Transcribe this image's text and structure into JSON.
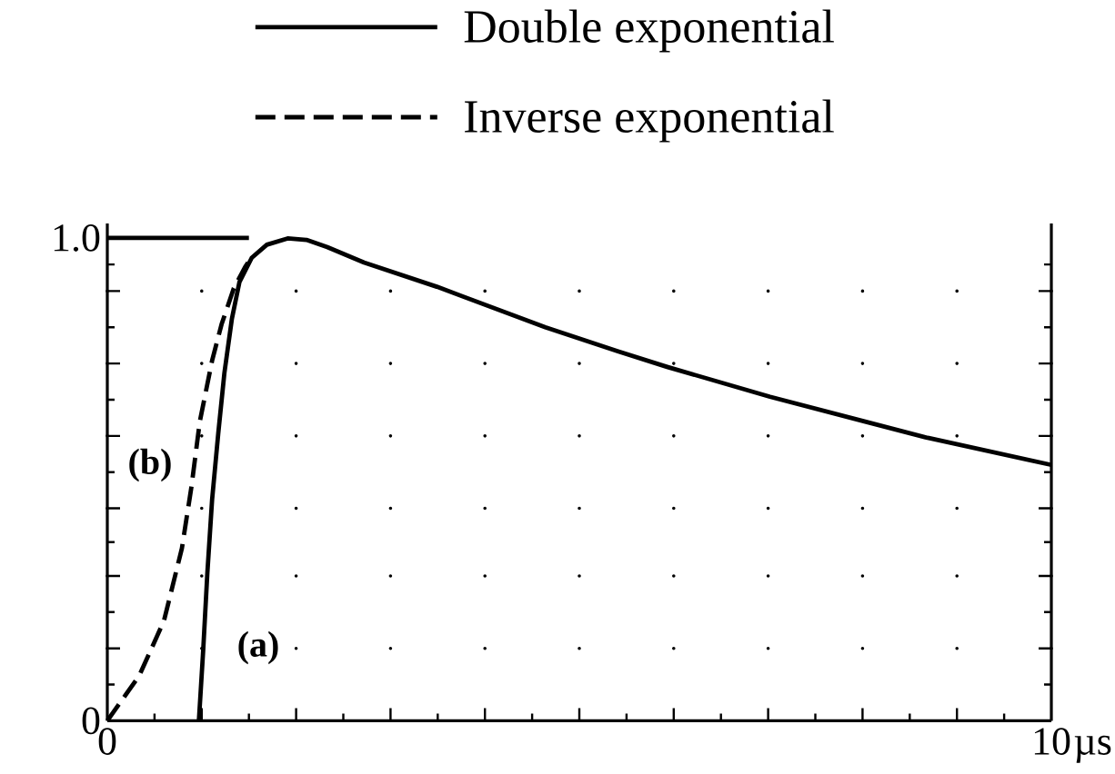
{
  "chart_data": {
    "type": "line",
    "xlabel": "µs",
    "xlim": [
      0,
      10
    ],
    "ylim": [
      0,
      1.03
    ],
    "xticks": [
      0,
      {
        "value": 1,
        "label": null
      },
      {
        "value": 2,
        "label": null
      },
      {
        "value": 3,
        "label": null
      },
      {
        "value": 4,
        "label": null
      },
      {
        "value": 5,
        "label": null
      },
      {
        "value": 6,
        "label": null
      },
      {
        "value": 7,
        "label": null
      },
      {
        "value": 8,
        "label": null
      },
      {
        "value": 9,
        "label": null
      },
      10
    ],
    "yticks": [
      0,
      {
        "value": 0.15,
        "label": null
      },
      {
        "value": 0.3,
        "label": null
      },
      {
        "value": 0.44,
        "label": null
      },
      {
        "value": 0.59,
        "label": null
      },
      {
        "value": 0.74,
        "label": null
      },
      {
        "value": 0.89,
        "label": null
      },
      {
        "value": 1,
        "label": "1.0"
      }
    ],
    "grid": true,
    "legend": "top left",
    "series": [
      {
        "name": "Double exponential",
        "color": "#000000",
        "line_style": "solid",
        "x": [
          0.97,
          1.015,
          1.06,
          1.11,
          1.175,
          1.24,
          1.32,
          1.4,
          1.53,
          1.69,
          1.91,
          2.11,
          2.33,
          2.72,
          3.49,
          4.64,
          5.41,
          5.93,
          7.02,
          8.02,
          8.69,
          10
        ],
        "values": [
          0,
          0.144,
          0.307,
          0.458,
          0.595,
          0.72,
          0.833,
          0.909,
          0.959,
          0.986,
          0.999,
          0.996,
          0.981,
          0.949,
          0.899,
          0.815,
          0.765,
          0.733,
          0.671,
          0.62,
          0.586,
          0.53
        ]
      },
      {
        "name": "Inverse exponential",
        "color": "#000000",
        "line_style": "dashed",
        "x": [
          0,
          0.34,
          0.6,
          0.79,
          0.89,
          0.98,
          1.11,
          1.21,
          1.34,
          1.46,
          1.53
        ],
        "values": [
          0,
          0.094,
          0.207,
          0.357,
          0.483,
          0.62,
          0.746,
          0.821,
          0.896,
          0.94,
          0.96
        ]
      },
      {
        "color": "#000000",
        "line_style": "solid",
        "x": [
          0,
          1.5
        ],
        "values": [
          1,
          1
        ]
      }
    ],
    "annotations": [
      "(a)",
      "(b)"
    ]
  }
}
